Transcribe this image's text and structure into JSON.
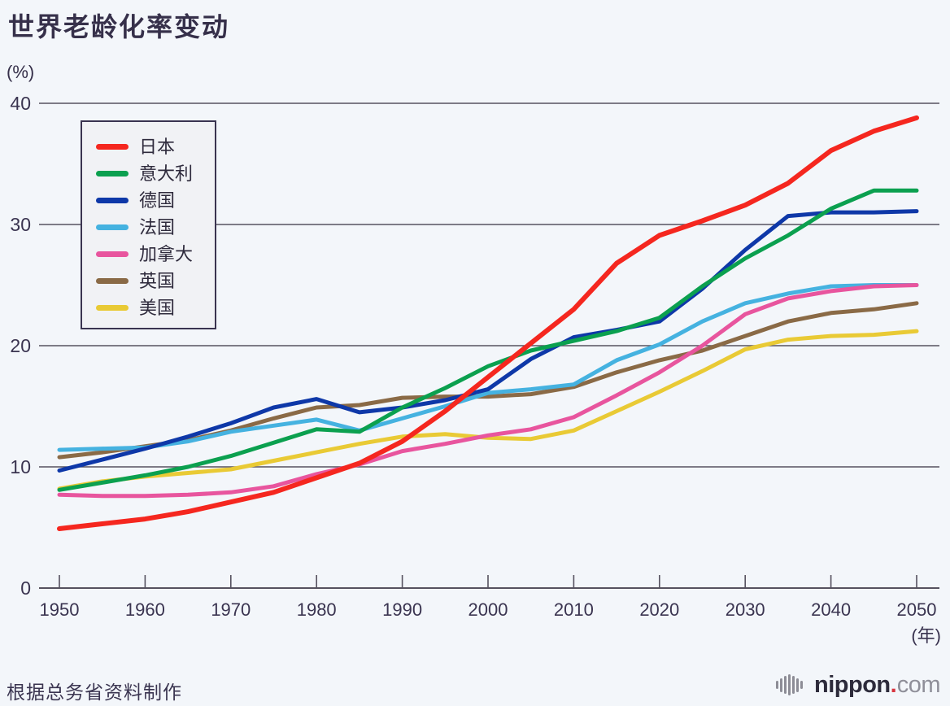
{
  "title": "世界老龄化率变动",
  "y_unit": "(%)",
  "x_unit": "(年)",
  "source_note": "根据总务省资料制作",
  "logo": {
    "icon": "striped-globe-icon",
    "text_main": "nippon",
    "text_dot": ".",
    "text_tld": "com"
  },
  "chart_data": {
    "type": "line",
    "title": "世界老龄化率变动",
    "ylabel": "(%)",
    "xlabel": "(年)",
    "ylim": [
      0,
      40
    ],
    "xlim": [
      1950,
      2050
    ],
    "grid": true,
    "legend_position": "upper-left",
    "y_ticks": [
      0,
      10,
      20,
      30,
      40
    ],
    "x_tick_labels": [
      1950,
      1960,
      1970,
      1980,
      1990,
      2000,
      2010,
      2020,
      2030,
      2040,
      2050
    ],
    "x": [
      1950,
      1955,
      1960,
      1965,
      1970,
      1975,
      1980,
      1985,
      1990,
      1995,
      2000,
      2005,
      2010,
      2015,
      2020,
      2025,
      2030,
      2035,
      2040,
      2045,
      2050
    ],
    "series": [
      {
        "id": "japan",
        "name": "日本",
        "color": "#f5271f",
        "width": 6,
        "z": 7,
        "values": [
          4.9,
          5.3,
          5.7,
          6.3,
          7.1,
          7.9,
          9.1,
          10.3,
          12.1,
          14.6,
          17.4,
          20.2,
          23.0,
          26.8,
          29.1,
          30.3,
          31.6,
          33.4,
          36.1,
          37.7,
          38.8
        ]
      },
      {
        "id": "italy",
        "name": "意大利",
        "color": "#0ba04f",
        "width": 5,
        "z": 6,
        "values": [
          8.1,
          8.7,
          9.3,
          10.0,
          10.9,
          12.0,
          13.1,
          12.9,
          14.9,
          16.5,
          18.3,
          19.6,
          20.4,
          21.2,
          22.3,
          24.9,
          27.2,
          29.1,
          31.3,
          32.8,
          32.8
        ]
      },
      {
        "id": "germany",
        "name": "德国",
        "color": "#0e38a8",
        "width": 5,
        "z": 5,
        "values": [
          9.7,
          10.6,
          11.5,
          12.5,
          13.6,
          14.9,
          15.6,
          14.5,
          14.9,
          15.5,
          16.4,
          18.9,
          20.7,
          21.3,
          22.0,
          24.7,
          27.9,
          30.7,
          31.0,
          31.0,
          31.1
        ]
      },
      {
        "id": "france",
        "name": "法国",
        "color": "#45b2e0",
        "width": 5,
        "z": 3,
        "values": [
          11.4,
          11.5,
          11.6,
          12.1,
          12.9,
          13.4,
          13.9,
          13.0,
          14.0,
          15.0,
          16.1,
          16.4,
          16.8,
          18.8,
          20.1,
          22.0,
          23.5,
          24.3,
          24.9,
          25.0,
          25.0
        ]
      },
      {
        "id": "canada",
        "name": "加拿大",
        "color": "#e8559e",
        "width": 5,
        "z": 4,
        "values": [
          7.7,
          7.6,
          7.6,
          7.7,
          7.9,
          8.4,
          9.4,
          10.2,
          11.3,
          11.9,
          12.6,
          13.1,
          14.1,
          15.9,
          17.8,
          20.0,
          22.6,
          23.9,
          24.5,
          24.9,
          25.0
        ]
      },
      {
        "id": "uk",
        "name": "英国",
        "color": "#8a6a46",
        "width": 5,
        "z": 2,
        "values": [
          10.8,
          11.2,
          11.7,
          12.2,
          13.0,
          14.0,
          14.9,
          15.1,
          15.7,
          15.8,
          15.8,
          16.0,
          16.6,
          17.8,
          18.8,
          19.6,
          20.8,
          22.0,
          22.7,
          23.0,
          23.5
        ]
      },
      {
        "id": "usa",
        "name": "美国",
        "color": "#e9ca35",
        "width": 5,
        "z": 1,
        "values": [
          8.2,
          8.8,
          9.2,
          9.5,
          9.8,
          10.5,
          11.2,
          11.9,
          12.5,
          12.7,
          12.4,
          12.3,
          13.0,
          14.6,
          16.2,
          17.9,
          19.7,
          20.5,
          20.8,
          20.9,
          21.2
        ]
      }
    ]
  }
}
